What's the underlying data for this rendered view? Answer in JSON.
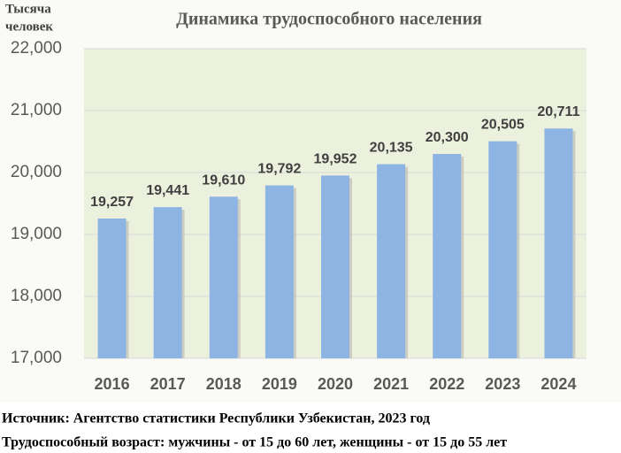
{
  "chart_data": {
    "type": "bar",
    "title": "Динамика трудоспособного населения",
    "ylabel": [
      "Тысяча",
      "человек"
    ],
    "categories": [
      "2016",
      "2017",
      "2018",
      "2019",
      "2020",
      "2021",
      "2022",
      "2023",
      "2024"
    ],
    "values": [
      19257,
      19441,
      19610,
      19792,
      19952,
      20135,
      20300,
      20505,
      20711
    ],
    "value_labels": [
      "19,257",
      "19,441",
      "19,610",
      "19,792",
      "19,952",
      "20,135",
      "20,300",
      "20,505",
      "20,711"
    ],
    "color": "#8eb4e3",
    "ylim": [
      17000,
      22000
    ],
    "yticks": [
      {
        "value": 17000,
        "label": "17,000"
      },
      {
        "value": 18000,
        "label": "18,000"
      },
      {
        "value": 19000,
        "label": "19,000"
      },
      {
        "value": 20000,
        "label": "20,000"
      },
      {
        "value": 21000,
        "label": "21,000"
      },
      {
        "value": 22000,
        "label": "22,000"
      }
    ],
    "grid": true
  },
  "footer": [
    "Источник: Агентство статистики Республики Узбекистан, 2023 год",
    "Трудоспособный возраст: мужчины - от 15 до 60 лет, женщины - от 15 до 55 лет"
  ]
}
